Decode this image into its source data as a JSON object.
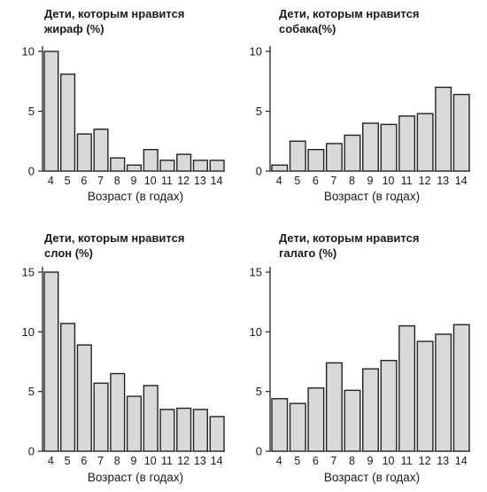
{
  "chart_data": [
    {
      "type": "bar",
      "title_lines": [
        "Дети, которым нравится",
        "жираф (%)"
      ],
      "xlabel": "Возраст (в годах)",
      "ylabel": "",
      "categories": [
        "4",
        "5",
        "6",
        "7",
        "8",
        "9",
        "10",
        "11",
        "12",
        "13",
        "14"
      ],
      "values": [
        10.0,
        8.1,
        3.1,
        3.5,
        1.1,
        0.5,
        1.8,
        0.9,
        1.4,
        0.9,
        0.9
      ],
      "ylim": [
        0,
        10
      ],
      "yticks": [
        "0",
        "5",
        "10"
      ],
      "bar_color": "#d9d9d9"
    },
    {
      "type": "bar",
      "title_lines": [
        "Дети, которым нравится",
        "собака(%)"
      ],
      "xlabel": "Возраст (в годах)",
      "ylabel": "",
      "categories": [
        "4",
        "5",
        "6",
        "7",
        "8",
        "9",
        "10",
        "11",
        "12",
        "13",
        "14"
      ],
      "values": [
        0.5,
        2.5,
        1.8,
        2.3,
        3.0,
        4.0,
        3.9,
        4.6,
        4.8,
        7.0,
        6.4
      ],
      "ylim": [
        0,
        10
      ],
      "yticks": [
        "0",
        "5",
        "10"
      ],
      "bar_color": "#d9d9d9"
    },
    {
      "type": "bar",
      "title_lines": [
        "Дети, которым нравится",
        "слон (%)"
      ],
      "xlabel": "Возраст (в годах)",
      "ylabel": "",
      "categories": [
        "4",
        "5",
        "6",
        "7",
        "8",
        "9",
        "10",
        "11",
        "12",
        "13",
        "14"
      ],
      "values": [
        15.0,
        10.7,
        8.9,
        5.7,
        6.5,
        4.6,
        5.5,
        3.5,
        3.6,
        3.5,
        2.9
      ],
      "ylim": [
        0,
        15
      ],
      "yticks": [
        "0",
        "5",
        "10",
        "15"
      ],
      "bar_color": "#d9d9d9"
    },
    {
      "type": "bar",
      "title_lines": [
        "Дети, которым нравится",
        "галаго (%)"
      ],
      "xlabel": "Возраст (в годах)",
      "ylabel": "",
      "categories": [
        "4",
        "5",
        "6",
        "7",
        "8",
        "9",
        "10",
        "11",
        "12",
        "13",
        "14"
      ],
      "values": [
        4.4,
        4.0,
        5.3,
        7.4,
        5.1,
        6.9,
        7.6,
        10.5,
        9.2,
        9.8,
        10.6
      ],
      "ylim": [
        0,
        15
      ],
      "yticks": [
        "0",
        "5",
        "10",
        "15"
      ],
      "bar_color": "#d9d9d9"
    }
  ]
}
